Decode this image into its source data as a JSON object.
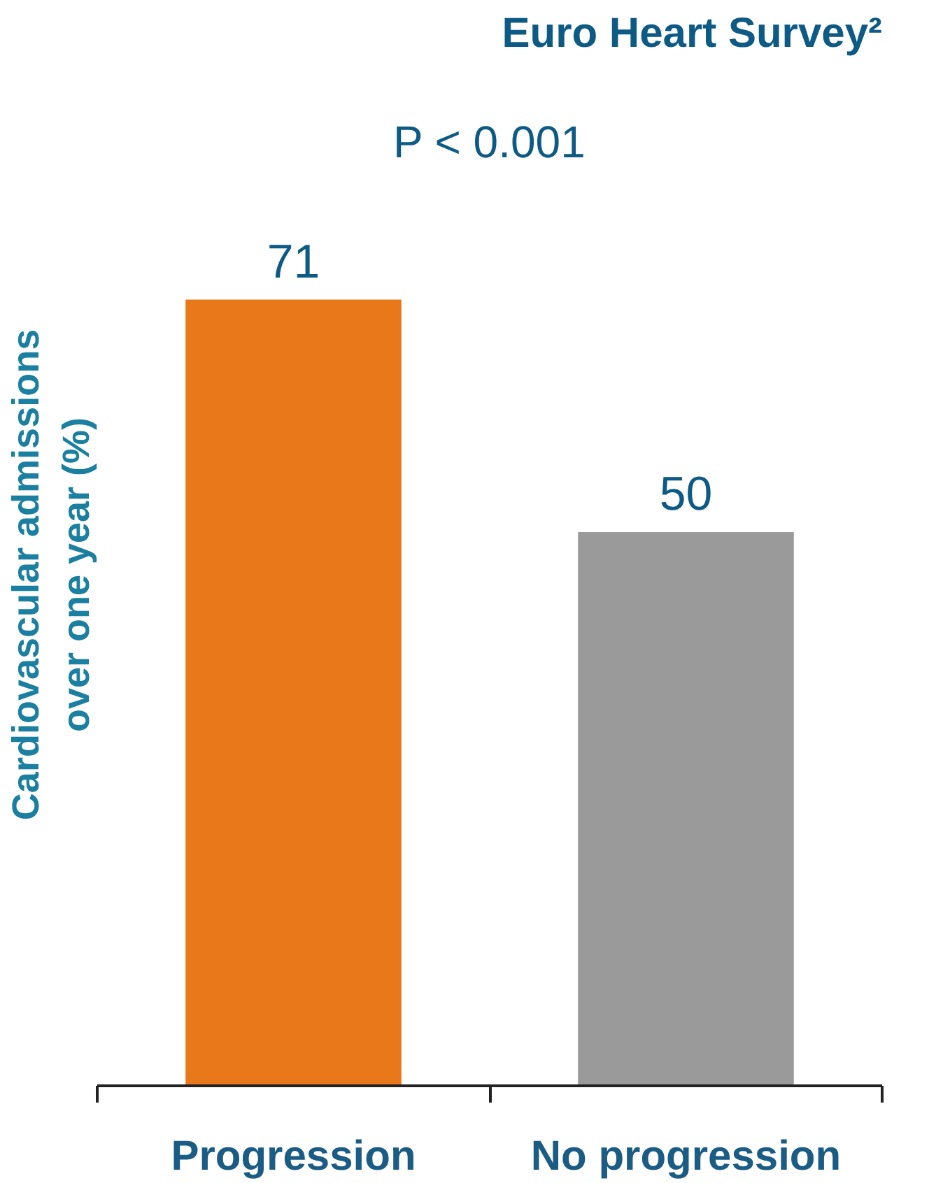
{
  "chart_data": {
    "type": "bar",
    "title": "Euro Heart Survey²",
    "ylabel": "Cardiovascular admissions\nover one year (%)",
    "categories": [
      "Progression",
      "No progression"
    ],
    "values": [
      71,
      50
    ],
    "colors": [
      "#e8781a",
      "#9a9a9a"
    ],
    "data_labels": true,
    "annotations": [
      "P < 0.001"
    ]
  }
}
